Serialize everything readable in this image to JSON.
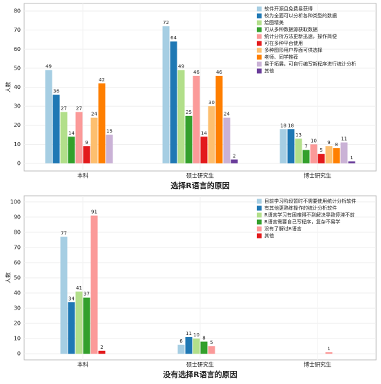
{
  "chart_data": [
    {
      "type": "bar",
      "xlabel": "选择R语言的原因",
      "ylabel": "人数",
      "categories": [
        "本科",
        "硕士研究生",
        "博士研究生"
      ],
      "series": [
        {
          "name": "软件开源且免费易获得",
          "color": "#a6cee3",
          "values": [
            49,
            72,
            18
          ]
        },
        {
          "name": "较为全面可以分析各种类型的数据",
          "color": "#1f78b4",
          "values": [
            36,
            64,
            18
          ]
        },
        {
          "name": "绘图精美",
          "color": "#b2df8a",
          "values": [
            27,
            49,
            13
          ]
        },
        {
          "name": "可从多种数据源获取数据",
          "color": "#33a02c",
          "values": [
            14,
            25,
            7
          ]
        },
        {
          "name": "统计分析方法更新迅速，操作简便",
          "color": "#fb9a99",
          "values": [
            27,
            46,
            10
          ]
        },
        {
          "name": "可在多种平台使用",
          "color": "#e31a1c",
          "values": [
            9,
            14,
            5
          ]
        },
        {
          "name": "多种图形用户界面可供选择",
          "color": "#fdbf6f",
          "values": [
            24,
            30,
            9
          ]
        },
        {
          "name": "老师、同学推荐",
          "color": "#ff7f00",
          "values": [
            42,
            46,
            8
          ]
        },
        {
          "name": "易于拓展，可自行编写新程序进行统计分析",
          "color": "#cab2d6",
          "values": [
            15,
            24,
            11
          ]
        },
        {
          "name": "其他",
          "color": "#6a3d9a",
          "values": [
            null,
            2,
            1
          ]
        }
      ],
      "ylim": [
        -4,
        84
      ],
      "yticks": [
        0,
        10,
        20,
        30,
        40,
        50,
        60,
        70,
        80
      ],
      "grid": true,
      "legend": "upper right"
    },
    {
      "type": "bar",
      "xlabel": "没有选择R语言的原因",
      "ylabel": "人数",
      "categories": [
        "本科",
        "硕士研究生",
        "博士研究生"
      ],
      "series": [
        {
          "name": "目前学习阶段暂时不需要使用统计分析软件",
          "color": "#a6cee3",
          "values": [
            77,
            6,
            null
          ]
        },
        {
          "name": "有其他更熟练操作的统计分析软件",
          "color": "#1f78b4",
          "values": [
            34,
            11,
            null
          ]
        },
        {
          "name": "R语言学习有困难得不到解决导致停滞不前",
          "color": "#b2df8a",
          "values": [
            41,
            10,
            null
          ]
        },
        {
          "name": "R语言需要自己写程序，复杂不易学",
          "color": "#33a02c",
          "values": [
            37,
            8,
            null
          ]
        },
        {
          "name": "没有了解过R语言",
          "color": "#fb9a99",
          "values": [
            91,
            5,
            1
          ]
        },
        {
          "name": "其他",
          "color": "#e31a1c",
          "values": [
            2,
            null,
            null
          ]
        }
      ],
      "ylim": [
        -4,
        104
      ],
      "yticks": [
        0,
        10,
        20,
        30,
        40,
        50,
        60,
        70,
        80,
        90,
        100
      ],
      "grid": true,
      "legend": "upper right"
    }
  ]
}
